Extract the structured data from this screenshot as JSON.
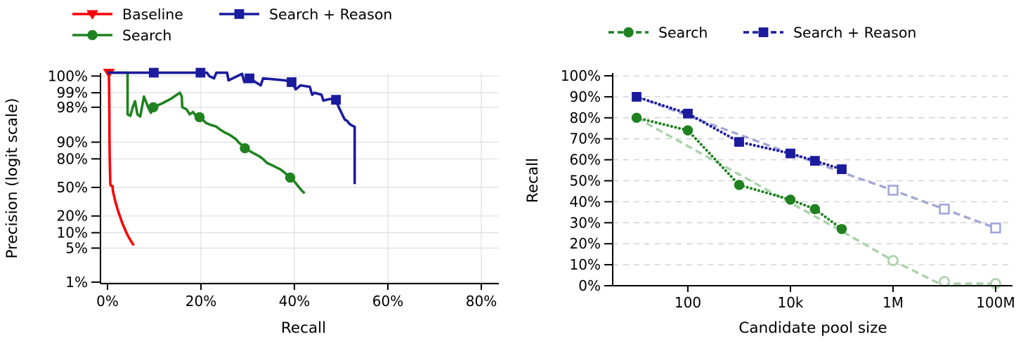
{
  "figure": {
    "background": "#ffffff"
  },
  "colors": {
    "red": "#fb0006",
    "green": "#1f821f",
    "navy": "#1b1b9e",
    "light_green": "#a9d2a9",
    "light_blue": "#a2a6d8",
    "grid_left": "#dedede",
    "grid_right": "#cccccc",
    "axis": "#000000"
  },
  "chart_data": [
    {
      "type": "line",
      "title": "",
      "xlabel": "Recall",
      "ylabel": "Precision (logit scale)",
      "x_axis": {
        "scale": "linear",
        "min": 0,
        "max": 83,
        "ticks": [
          0,
          20,
          40,
          60,
          80
        ],
        "tick_labels": [
          "0%",
          "20%",
          "40%",
          "60%",
          "80%"
        ],
        "grid": true
      },
      "y_axis": {
        "scale": "logit",
        "ticks": [
          100,
          99,
          98,
          90,
          80,
          50,
          20,
          10,
          5,
          1
        ],
        "tick_labels": [
          "100%",
          "99%",
          "98%",
          "90%",
          "80%",
          "50%",
          "20%",
          "10%",
          "5%",
          "1%"
        ],
        "grid": true
      },
      "legend_position": "top-left",
      "series": [
        {
          "name": "Baseline",
          "color_key": "red",
          "marker": "triangle-down",
          "line_style": "solid",
          "points": [
            [
              0.3,
              99.75
            ],
            [
              0.35,
              99.3
            ],
            [
              0.4,
              97
            ],
            [
              0.42,
              92
            ],
            [
              0.45,
              86
            ],
            [
              0.5,
              76
            ],
            [
              0.55,
              65
            ],
            [
              0.6,
              55
            ],
            [
              0.65,
              52.5
            ],
            [
              0.9,
              52
            ],
            [
              1.1,
              51.5
            ],
            [
              1.12,
              48
            ],
            [
              1.2,
              44.5
            ],
            [
              1.35,
              41
            ],
            [
              1.5,
              37.5
            ],
            [
              1.7,
              33
            ],
            [
              1.95,
              29
            ],
            [
              2.2,
              25
            ],
            [
              2.5,
              21.5
            ],
            [
              2.8,
              18.5
            ],
            [
              3.1,
              15.5
            ],
            [
              3.4,
              13.5
            ],
            [
              3.7,
              11.8
            ],
            [
              4.0,
              10.2
            ],
            [
              4.3,
              9.0
            ],
            [
              4.6,
              8.0
            ],
            [
              4.9,
              7.2
            ],
            [
              5.2,
              6.5
            ],
            [
              5.45,
              6.0
            ],
            [
              5.65,
              5.7
            ]
          ],
          "marker_points": [
            [
              0.3,
              99.75
            ]
          ]
        },
        {
          "name": "Search",
          "color_key": "green",
          "marker": "circle",
          "line_style": "solid",
          "points": [
            [
              0.05,
              99.75
            ],
            [
              4.3,
              99.75
            ],
            [
              4.3,
              97.2
            ],
            [
              4.9,
              97.0
            ],
            [
              5.4,
              98.0
            ],
            [
              5.9,
              98.5
            ],
            [
              6.4,
              97.2
            ],
            [
              7.0,
              96.9
            ],
            [
              7.8,
              98.8
            ],
            [
              8.7,
              98.0
            ],
            [
              9.3,
              97.4
            ],
            [
              9.8,
              98.0
            ],
            [
              11.5,
              98.3
            ],
            [
              13.5,
              98.65
            ],
            [
              15.5,
              99.0
            ],
            [
              15.9,
              98.8
            ],
            [
              16.0,
              98.0
            ],
            [
              16.9,
              97.8
            ],
            [
              17.6,
              97.2
            ],
            [
              18.3,
              97.5
            ],
            [
              19.0,
              96.9
            ],
            [
              19.7,
              96.8
            ],
            [
              20.5,
              96.3
            ],
            [
              21.1,
              95.8
            ],
            [
              22.1,
              95.4
            ],
            [
              23.2,
              95.1
            ],
            [
              24.1,
              94.3
            ],
            [
              25.1,
              93.5
            ],
            [
              26.0,
              92.9
            ],
            [
              26.6,
              92.3
            ],
            [
              27.5,
              91.2
            ],
            [
              28.1,
              89.8
            ],
            [
              29.0,
              88.2
            ],
            [
              29.4,
              87.0
            ],
            [
              30.3,
              85.6
            ],
            [
              31.1,
              84.3
            ],
            [
              31.9,
              83.0
            ],
            [
              32.6,
              81.7
            ],
            [
              33.4,
              79.5
            ],
            [
              34.1,
              76.7
            ],
            [
              34.9,
              75.2
            ],
            [
              35.6,
              73.8
            ],
            [
              36.4,
              72.0
            ],
            [
              37.1,
              70.3
            ],
            [
              37.7,
              68.0
            ],
            [
              38.3,
              65.5
            ],
            [
              39.1,
              61.7
            ],
            [
              40.1,
              56.5
            ],
            [
              41.0,
              50.0
            ],
            [
              41.7,
              45.5
            ],
            [
              42.2,
              43.0
            ]
          ],
          "marker_points": [
            [
              9.8,
              98.0
            ],
            [
              19.7,
              96.8
            ],
            [
              29.4,
              87.0
            ],
            [
              39.1,
              61.7
            ]
          ]
        },
        {
          "name": "Search + Reason",
          "color_key": "navy",
          "marker": "square",
          "line_style": "solid",
          "points": [
            [
              0.05,
              99.75
            ],
            [
              21.3,
              99.75
            ],
            [
              21.8,
              99.55
            ],
            [
              22.8,
              99.5
            ],
            [
              23.3,
              99.68
            ],
            [
              25.6,
              99.68
            ],
            [
              25.9,
              99.45
            ],
            [
              28.8,
              99.6
            ],
            [
              29.3,
              99.4
            ],
            [
              30.4,
              99.5
            ],
            [
              32.8,
              99.3
            ],
            [
              33.3,
              99.5
            ],
            [
              38.0,
              99.45
            ],
            [
              39.4,
              99.4
            ],
            [
              40.3,
              99.15
            ],
            [
              41.3,
              99.3
            ],
            [
              43.3,
              99.25
            ],
            [
              43.8,
              98.9
            ],
            [
              44.3,
              99.0
            ],
            [
              45.8,
              98.9
            ],
            [
              46.2,
              98.55
            ],
            [
              47.6,
              98.65
            ],
            [
              48.9,
              98.6
            ],
            [
              49.3,
              98.2
            ],
            [
              49.8,
              97.7
            ],
            [
              50.3,
              97.1
            ],
            [
              50.8,
              96.4
            ],
            [
              51.3,
              96.2
            ],
            [
              51.8,
              95.6
            ],
            [
              52.3,
              95.3
            ],
            [
              52.9,
              95.0
            ],
            [
              52.9,
              54.0
            ]
          ],
          "marker_points": [
            [
              9.9,
              99.75
            ],
            [
              19.9,
              99.75
            ],
            [
              30.4,
              99.5
            ],
            [
              39.4,
              99.4
            ],
            [
              48.9,
              98.6
            ]
          ]
        }
      ]
    },
    {
      "type": "line",
      "title": "",
      "xlabel": "Candidate pool size",
      "ylabel": "Recall",
      "x_axis": {
        "scale": "log",
        "ticks": [
          100,
          10000,
          1000000,
          100000000
        ],
        "tick_labels": [
          "100",
          "10k",
          "1M",
          "100M"
        ],
        "grid": false
      },
      "y_axis": {
        "scale": "linear",
        "min": 0,
        "max": 100,
        "ticks": [
          0,
          10,
          20,
          30,
          40,
          50,
          60,
          70,
          80,
          90,
          100
        ],
        "tick_labels": [
          "0%",
          "10%",
          "20%",
          "30%",
          "40%",
          "50%",
          "60%",
          "70%",
          "80%",
          "90%",
          "100%"
        ],
        "grid": true,
        "grid_style": "dashed"
      },
      "legend_position": "top-center",
      "series": [
        {
          "name": "Search trend",
          "color_key": "light_green",
          "marker": "circle-open",
          "line_style": "dashed",
          "in_legend": false,
          "points": [
            [
              10,
              80
            ],
            [
              100,
              66.5
            ],
            [
              1000,
              53
            ],
            [
              10000,
              39.5
            ],
            [
              100000,
              26
            ],
            [
              1000000,
              12
            ],
            [
              8000000,
              1
            ],
            [
              100000000,
              1
            ]
          ],
          "marker_points": [
            [
              1000000,
              12
            ],
            [
              10000000,
              2
            ],
            [
              100000000,
              1
            ]
          ]
        },
        {
          "name": "Search + Reason trend",
          "color_key": "light_blue",
          "marker": "square-open",
          "line_style": "dashed",
          "in_legend": false,
          "points": [
            [
              10,
              90
            ],
            [
              100,
              81
            ],
            [
              1000,
              72
            ],
            [
              10000,
              63
            ],
            [
              100000,
              54
            ],
            [
              1000000,
              45.5
            ],
            [
              10000000,
              36.5
            ],
            [
              100000000,
              27.5
            ]
          ],
          "marker_points": [
            [
              1000000,
              45.5
            ],
            [
              10000000,
              36.5
            ],
            [
              100000000,
              27.5
            ]
          ]
        },
        {
          "name": "Search",
          "color_key": "green",
          "marker": "circle",
          "line_style": "dotted",
          "in_legend": true,
          "points": [
            [
              10,
              80
            ],
            [
              100,
              74
            ],
            [
              1000,
              48
            ],
            [
              10000,
              41
            ],
            [
              30000,
              36.5
            ],
            [
              100000,
              27
            ]
          ],
          "marker_points": [
            [
              10,
              80
            ],
            [
              100,
              74
            ],
            [
              1000,
              48
            ],
            [
              10000,
              41
            ],
            [
              30000,
              36.5
            ],
            [
              100000,
              27
            ]
          ]
        },
        {
          "name": "Search + Reason",
          "color_key": "navy",
          "marker": "square",
          "line_style": "dotted",
          "in_legend": true,
          "points": [
            [
              10,
              90
            ],
            [
              100,
              82
            ],
            [
              1000,
              68.5
            ],
            [
              10000,
              63
            ],
            [
              30000,
              59.5
            ],
            [
              100000,
              55.5
            ]
          ],
          "marker_points": [
            [
              10,
              90
            ],
            [
              100,
              82
            ],
            [
              1000,
              68.5
            ],
            [
              10000,
              63
            ],
            [
              30000,
              59.5
            ],
            [
              100000,
              55.5
            ]
          ]
        }
      ]
    }
  ],
  "legends": {
    "left": [
      {
        "label": "Baseline",
        "color_key": "red",
        "marker": "triangle-down",
        "line_style": "solid"
      },
      {
        "label": "Search + Reason",
        "color_key": "navy",
        "marker": "square",
        "line_style": "solid"
      },
      {
        "label": "Search",
        "color_key": "green",
        "marker": "circle",
        "line_style": "solid"
      }
    ],
    "right": [
      {
        "label": "Search",
        "color_key": "green",
        "marker": "circle",
        "line_style": "dashed"
      },
      {
        "label": "Search + Reason",
        "color_key": "navy",
        "marker": "square",
        "line_style": "dashed"
      }
    ]
  }
}
